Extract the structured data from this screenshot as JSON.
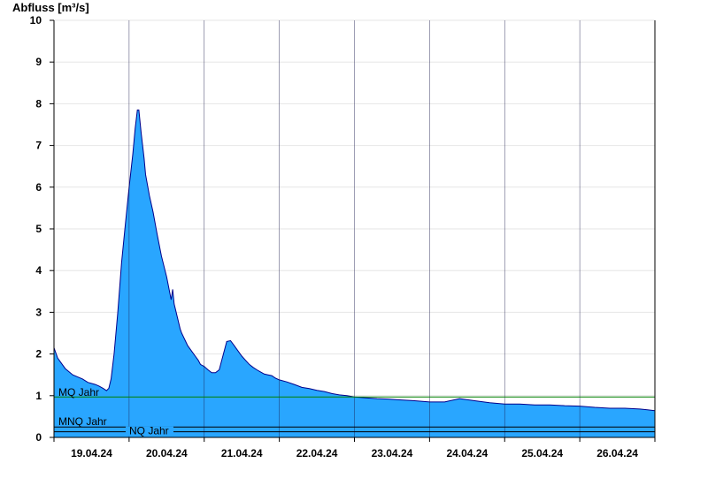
{
  "chart_data": {
    "type": "area",
    "ylabel": "Abfluss [m³/s]",
    "ylim": [
      0,
      10
    ],
    "y_ticks": [
      "0",
      "1",
      "2",
      "3",
      "4",
      "5",
      "6",
      "7",
      "8",
      "9",
      "10"
    ],
    "x_ticks": [
      "19.04.24",
      "20.04.24",
      "21.04.24",
      "22.04.24",
      "23.04.24",
      "24.04.24",
      "25.04.24",
      "26.04.24"
    ],
    "x_range_days": [
      -1,
      7
    ],
    "grid": true,
    "colors": {
      "area": "#29a6ff",
      "outline": "#00008b",
      "mq_line": "#008000",
      "nq_line": "#000000"
    },
    "reference_lines": [
      {
        "label": "MQ Jahr",
        "value": 0.97
      },
      {
        "label": "MNQ Jahr",
        "value": 0.25
      },
      {
        "label": "NQ Jahr",
        "value": 0.22
      }
    ],
    "series": [
      {
        "x": [
          -1.0,
          -0.95,
          -0.85,
          -0.75,
          -0.62,
          -0.55,
          -0.45,
          -0.4,
          -0.35,
          -0.3,
          -0.27,
          -0.24,
          -0.2,
          -0.15,
          -0.1,
          -0.05,
          0.0,
          0.05,
          0.08,
          0.11,
          0.13,
          0.16,
          0.2,
          0.22,
          0.27,
          0.32,
          0.37,
          0.43,
          0.5,
          0.56,
          0.58,
          0.6,
          0.62,
          0.64,
          0.66,
          0.68,
          0.7,
          0.74,
          0.78,
          0.82,
          0.88,
          0.92,
          0.95,
          0.98,
          1.0,
          1.05,
          1.1,
          1.15,
          1.2,
          1.3,
          1.35,
          1.4,
          1.5,
          1.55,
          1.6,
          1.65,
          1.7,
          1.75,
          1.8,
          1.85,
          1.9,
          1.95,
          2.0,
          2.1,
          2.2,
          2.3,
          2.4,
          2.5,
          2.6,
          2.7,
          2.8,
          2.9,
          3.0,
          3.15,
          3.3,
          3.45,
          3.6,
          3.8,
          4.0,
          4.2,
          4.4,
          4.6,
          4.8,
          5.0,
          5.2,
          5.4,
          5.6,
          5.8,
          6.0,
          6.2,
          6.4,
          6.6,
          6.8,
          6.9,
          7.0
        ],
        "y": [
          2.15,
          1.9,
          1.65,
          1.5,
          1.4,
          1.32,
          1.27,
          1.23,
          1.18,
          1.12,
          1.18,
          1.4,
          2.0,
          3.0,
          4.2,
          5.1,
          6.0,
          6.8,
          7.4,
          7.85,
          7.85,
          7.3,
          6.7,
          6.3,
          5.8,
          5.4,
          4.9,
          4.35,
          3.85,
          3.3,
          3.55,
          3.2,
          3.05,
          2.9,
          2.75,
          2.6,
          2.5,
          2.35,
          2.2,
          2.1,
          1.95,
          1.85,
          1.75,
          1.72,
          1.7,
          1.62,
          1.55,
          1.55,
          1.62,
          2.3,
          2.32,
          2.2,
          1.95,
          1.85,
          1.75,
          1.68,
          1.62,
          1.57,
          1.52,
          1.5,
          1.48,
          1.42,
          1.38,
          1.33,
          1.27,
          1.2,
          1.17,
          1.13,
          1.1,
          1.05,
          1.02,
          1.0,
          0.97,
          0.95,
          0.93,
          0.92,
          0.9,
          0.88,
          0.85,
          0.85,
          0.93,
          0.88,
          0.83,
          0.8,
          0.8,
          0.78,
          0.78,
          0.76,
          0.75,
          0.72,
          0.7,
          0.7,
          0.68,
          0.66,
          0.64
        ]
      }
    ]
  }
}
